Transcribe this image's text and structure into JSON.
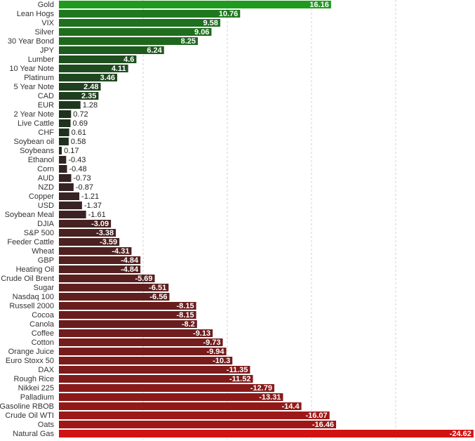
{
  "chart_data": {
    "type": "bar",
    "orientation": "horizontal",
    "title": "",
    "xlabel": "",
    "ylabel": "",
    "xlim": [
      -25,
      25
    ],
    "grid": "vertical dashed lines",
    "colors": {
      "positive_max": "#1e9b1e",
      "positive_min": "#1e2b1e",
      "negative_min": "#2e2424",
      "negative_max": "#d11212",
      "grid": "#d0d0d0",
      "label_text": "#333333"
    },
    "categories": [
      "Gold",
      "Lean Hogs",
      "VIX",
      "Silver",
      "30 Year Bond",
      "JPY",
      "Lumber",
      "10 Year Note",
      "Platinum",
      "5 Year Note",
      "CAD",
      "EUR",
      "2 Year Note",
      "Live Cattle",
      "CHF",
      "Soybean oil",
      "Soybeans",
      "Ethanol",
      "Corn",
      "AUD",
      "NZD",
      "Copper",
      "USD",
      "Soybean Meal",
      "DJIA",
      "S&P 500",
      "Feeder Cattle",
      "Wheat",
      "GBP",
      "Heating Oil",
      "Crude Oil Brent",
      "Sugar",
      "Nasdaq 100",
      "Russell 2000",
      "Cocoa",
      "Canola",
      "Coffee",
      "Cotton",
      "Orange Juice",
      "Euro Stoxx 50",
      "DAX",
      "Rough Rice",
      "Nikkei 225",
      "Palladium",
      "Gasoline RBOB",
      "Crude Oil WTI",
      "Oats",
      "Natural Gas"
    ],
    "values": [
      16.16,
      10.76,
      9.58,
      9.06,
      8.25,
      6.24,
      4.6,
      4.11,
      3.46,
      2.48,
      2.35,
      1.28,
      0.72,
      0.69,
      0.61,
      0.58,
      0.17,
      -0.43,
      -0.48,
      -0.73,
      -0.87,
      -1.21,
      -1.37,
      -1.61,
      -3.09,
      -3.38,
      -3.59,
      -4.31,
      -4.84,
      -4.84,
      -5.69,
      -6.51,
      -6.56,
      -8.15,
      -8.15,
      -8.2,
      -9.13,
      -9.73,
      -9.94,
      -10.3,
      -11.35,
      -11.52,
      -12.79,
      -13.31,
      -14.4,
      -16.07,
      -16.46,
      -24.62
    ],
    "value_labels": [
      "16.16",
      "10.76",
      "9.58",
      "9.06",
      "8.25",
      "6.24",
      "4.6",
      "4.11",
      "3.46",
      "2.48",
      "2.35",
      "1.28",
      "0.72",
      "0.69",
      "0.61",
      "0.58",
      "0.17",
      "-0.43",
      "-0.48",
      "-0.73",
      "-0.87",
      "-1.21",
      "-1.37",
      "-1.61",
      "-3.09",
      "-3.38",
      "-3.59",
      "-4.31",
      "-4.84",
      "-4.84",
      "-5.69",
      "-6.51",
      "-6.56",
      "-8.15",
      "-8.15",
      "-8.2",
      "-9.13",
      "-9.73",
      "-9.94",
      "-10.3",
      "-11.35",
      "-11.52",
      "-12.79",
      "-13.31",
      "-14.4",
      "-16.07",
      "-16.46",
      "-24.62"
    ]
  }
}
